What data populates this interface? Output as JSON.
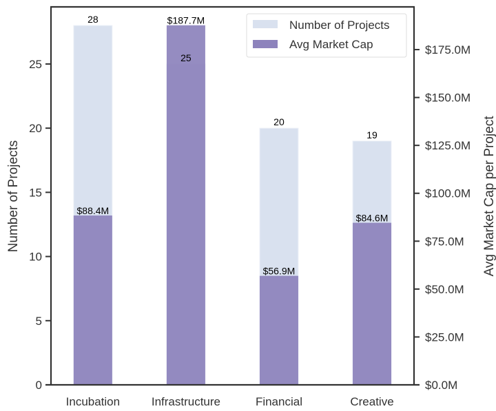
{
  "chart_data": {
    "type": "bar",
    "title": "",
    "categories": [
      "Incubation",
      "Infrastructure",
      "Financial",
      "Creative"
    ],
    "series": [
      {
        "name": "Number of Projects",
        "axis": "left",
        "values": [
          28,
          25,
          20,
          19
        ],
        "labels": [
          "28",
          "25",
          "20",
          "19"
        ],
        "color": "#d9e1ef"
      },
      {
        "name": "Avg Market Cap",
        "axis": "right",
        "values": [
          88.4,
          187.7,
          56.9,
          84.6
        ],
        "labels": [
          "$88.4M",
          "$187.7M",
          "$56.9M",
          "$84.6M"
        ],
        "color": "#8d83bc"
      }
    ],
    "xlabel": "",
    "ylabel": "Number of Projects",
    "y2label": "Avg Market Cap per Project",
    "ylim": [
      0,
      29.45
    ],
    "y2lim": [
      0,
      197.3
    ],
    "yticks": [
      0,
      5,
      10,
      15,
      20,
      25
    ],
    "y2ticks": [
      0,
      25,
      50,
      75,
      100,
      125,
      150,
      175
    ],
    "y2tick_labels": [
      "$0.0M",
      "$25.0M",
      "$50.0M",
      "$75.0M",
      "$100.0M",
      "$125.0M",
      "$150.0M",
      "$175.0M"
    ],
    "grid": false,
    "legend_position": "top-right"
  }
}
